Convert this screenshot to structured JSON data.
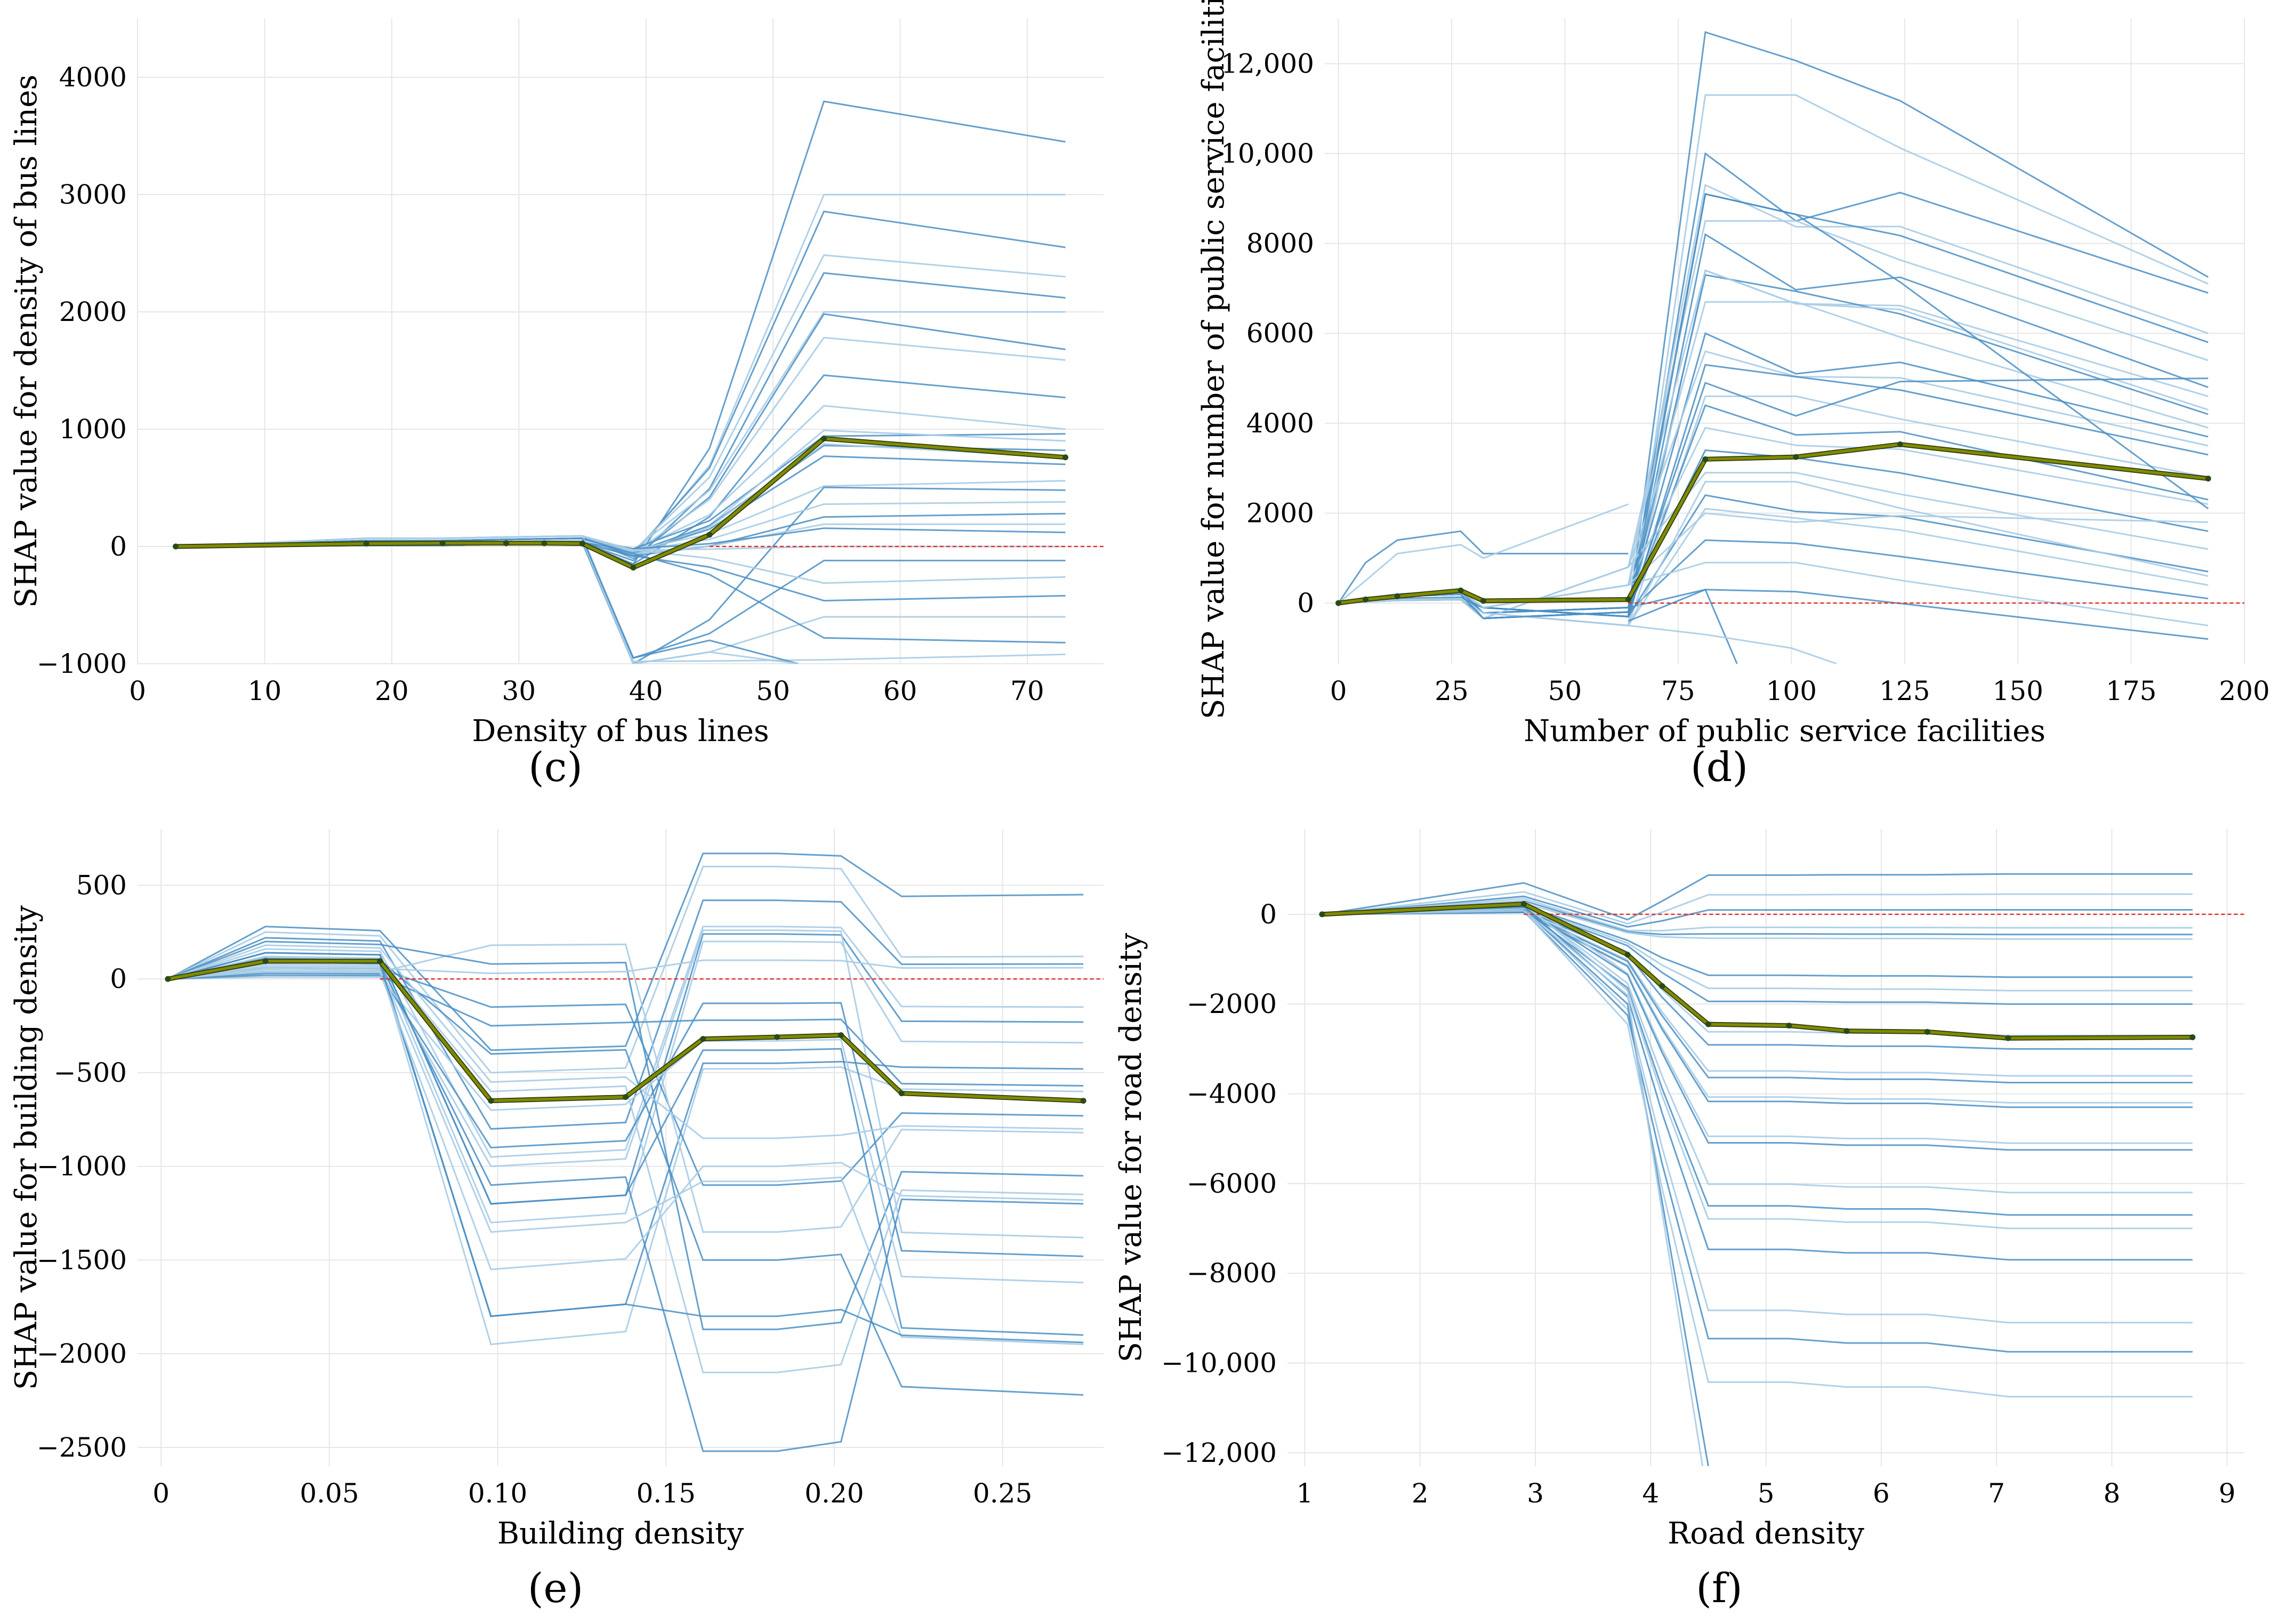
{
  "figure": {
    "layout": "2x2 grid of SHAP individual-dependence panels"
  },
  "colors": {
    "ice_dark": "#4a8fc4",
    "ice_light": "#a9cce6",
    "average": "#7f8a00",
    "average_marker": "#2b4a16",
    "zero_line": "#e0302a",
    "grid": "#e6e6e6"
  },
  "chart_data": [
    {
      "type": "line",
      "panel_label": "(c)",
      "xlabel": "Density of bus lines",
      "ylabel": "SHAP value for density of bus lines",
      "xlim": [
        0,
        76
      ],
      "ylim": [
        -1000,
        4500
      ],
      "xticks": [
        0,
        10,
        20,
        30,
        40,
        50,
        60,
        70
      ],
      "yticks": [
        -1000,
        0,
        1000,
        2000,
        3000,
        4000
      ],
      "xtick_labels": [
        "0",
        "10",
        "20",
        "30",
        "40",
        "50",
        "60",
        "70"
      ],
      "ytick_labels": [
        "−1000",
        "0",
        "1000",
        "2000",
        "3000",
        "4000"
      ],
      "x": [
        3,
        18,
        24,
        29,
        32,
        35,
        39,
        45,
        54,
        73
      ],
      "average_series": {
        "name": "average",
        "values": [
          0,
          25,
          28,
          28,
          28,
          25,
          -180,
          100,
          920,
          760
        ]
      },
      "ice_endpoints": [
        3450,
        3000,
        2550,
        2300,
        2120,
        2000,
        1680,
        1590,
        1270,
        1000,
        960,
        900,
        820,
        760,
        700,
        560,
        480,
        380,
        280,
        190,
        120,
        0,
        -120,
        -260,
        -420,
        -600,
        -820,
        -920
      ],
      "ice_peak_ratio": [
        1.1,
        1.0,
        1.12,
        1.08,
        1.1,
        1.0,
        1.18,
        1.12,
        1.15,
        1.2,
        0.98,
        1.1,
        1.05,
        1.15,
        1.1,
        0.92,
        1.05,
        0.95,
        0.9,
        1.0,
        1.3,
        1.0,
        1.0,
        1.2,
        1.1,
        1.0,
        0.95,
        1.05
      ],
      "ice_dip_values": [
        -150,
        -80,
        -60,
        -40,
        -120,
        -30,
        -100,
        -60,
        -150,
        -40,
        -20,
        -90,
        -50,
        -70,
        -60,
        -30,
        -1000,
        -40,
        -80,
        -60,
        -20,
        -30,
        -950,
        -30,
        -80,
        -1000,
        -60,
        -980
      ],
      "ice_cliffs": [
        {
          "x": [
            35,
            39,
            45,
            52
          ],
          "values": [
            70,
            -950,
            -800,
            -1000
          ]
        },
        {
          "x": [
            39,
            45,
            52
          ],
          "values": [
            -1000,
            -900,
            -1000
          ]
        }
      ],
      "zero_line_from_x": 45
    },
    {
      "type": "line",
      "panel_label": "(d)",
      "xlabel": "Number of public service facilities",
      "ylabel": "SHAP value for number of public service facilities",
      "xlim": [
        -3,
        200
      ],
      "ylim": [
        -1350,
        13000
      ],
      "xticks": [
        0,
        25,
        50,
        75,
        100,
        125,
        150,
        175,
        200
      ],
      "yticks": [
        0,
        2000,
        4000,
        6000,
        8000,
        10000,
        12000
      ],
      "xtick_labels": [
        "0",
        "25",
        "50",
        "75",
        "100",
        "125",
        "150",
        "175",
        "200"
      ],
      "ytick_labels": [
        "0",
        "2000",
        "4000",
        "6000",
        "8000",
        "10,000",
        "12,000"
      ],
      "x": [
        0,
        6,
        13,
        27,
        32,
        64,
        81,
        101,
        124,
        192
      ],
      "average_series": {
        "name": "average",
        "values": [
          0,
          80,
          150,
          280,
          50,
          80,
          3200,
          3250,
          3530,
          2770
        ]
      },
      "ice_endpoints": [
        7250,
        7100,
        6900,
        6000,
        5800,
        5400,
        4800,
        4600,
        4200,
        3900,
        3700,
        3500,
        3300,
        2800,
        2300,
        2200,
        1600,
        1200,
        700,
        400,
        100,
        -500,
        -800,
        4300,
        2100,
        600,
        5000,
        1800
      ],
      "ice_peaks": [
        12700,
        11300,
        10000,
        9300,
        9100,
        8500,
        8200,
        7400,
        7300,
        6700,
        6000,
        5600,
        5300,
        4600,
        4400,
        3900,
        3400,
        2900,
        2400,
        2100,
        1400,
        900,
        300,
        7400,
        9100,
        2700,
        4900,
        2000
      ],
      "ice_early": [
        {
          "x": [
            0,
            6,
            13,
            27,
            32,
            64
          ],
          "values": [
            0,
            900,
            1400,
            1600,
            1100,
            1100
          ]
        },
        {
          "x": [
            0,
            6,
            13,
            27,
            32,
            64
          ],
          "values": [
            0,
            500,
            1100,
            1300,
            1000,
            2200
          ]
        }
      ],
      "ice_cliffs": [
        {
          "x": [
            64,
            81,
            88
          ],
          "values": [
            -400,
            300,
            -1350
          ]
        },
        {
          "x": [
            64,
            81,
            100,
            110
          ],
          "values": [
            -500,
            -700,
            -1000,
            -1350
          ]
        }
      ],
      "zero_line_from_x": 64
    },
    {
      "type": "line",
      "panel_label": "(e)",
      "xlabel": "Building density",
      "ylabel": "SHAP value for building density",
      "xlim": [
        -0.007,
        0.28
      ],
      "ylim": [
        -2600,
        800
      ],
      "xticks": [
        0,
        0.05,
        0.1,
        0.15,
        0.2,
        0.25
      ],
      "yticks": [
        -2500,
        -2000,
        -1500,
        -1000,
        -500,
        0,
        500
      ],
      "xtick_labels": [
        "0",
        "0.05",
        "0.10",
        "0.15",
        "0.20",
        "0.25"
      ],
      "ytick_labels": [
        "−2500",
        "−2000",
        "−1500",
        "−1000",
        "−500",
        "0",
        "500"
      ],
      "x": [
        0.002,
        0.031,
        0.065,
        0.098,
        0.138,
        0.161,
        0.183,
        0.202,
        0.22,
        0.274
      ],
      "average_series": {
        "name": "average",
        "values": [
          0,
          95,
          95,
          -650,
          -630,
          -320,
          -310,
          -300,
          -610,
          -650
        ]
      },
      "ice_early": [
        280,
        250,
        220,
        160,
        140,
        120,
        100,
        80,
        60,
        40,
        200,
        120,
        90,
        50,
        30,
        10,
        140,
        70,
        110,
        60,
        20,
        180,
        90,
        40
      ],
      "ice_mid": [
        -380,
        -500,
        -800,
        -950,
        -1200,
        -1300,
        -1800,
        -1950,
        -150,
        180,
        80,
        -600,
        -1100,
        -1000,
        -900,
        -700,
        -1200,
        -1350,
        -400,
        30,
        -250,
        -550,
        -1800,
        -1550
      ],
      "ice_right": [
        670,
        600,
        420,
        280,
        240,
        200,
        -450,
        -480,
        -1100,
        -1350,
        -1870,
        -2100,
        -2520,
        260,
        -130,
        -330,
        -380,
        -1080,
        -1500,
        100,
        -220,
        -850,
        -1800,
        -1000
      ],
      "ice_end": [
        450,
        120,
        80,
        -150,
        -230,
        -340,
        -480,
        -600,
        -730,
        -820,
        -1050,
        -1150,
        -1200,
        -1380,
        -1480,
        -1620,
        -1900,
        -1950,
        -2220,
        60,
        -570,
        -800,
        -1940,
        -1180
      ],
      "zero_line_from_x": 0.065
    },
    {
      "type": "line",
      "panel_label": "(f)",
      "xlabel": "Road density",
      "ylabel": "SHAP value for road density",
      "xlim": [
        0.85,
        9.15
      ],
      "ylim": [
        -12300,
        1900
      ],
      "xticks": [
        1,
        2,
        3,
        4,
        5,
        6,
        7,
        8,
        9
      ],
      "yticks": [
        -12000,
        -10000,
        -8000,
        -6000,
        -4000,
        -2000,
        0
      ],
      "xtick_labels": [
        "1",
        "2",
        "3",
        "4",
        "5",
        "6",
        "7",
        "8",
        "9"
      ],
      "ytick_labels": [
        "−12,000",
        "−10,000",
        "−8000",
        "−6000",
        "−4000",
        "−2000",
        "0"
      ],
      "x": [
        1.15,
        2.9,
        3.8,
        4.1,
        4.5,
        5.2,
        5.7,
        6.4,
        7.1,
        8.7
      ],
      "average_series": {
        "name": "average",
        "values": [
          0,
          230,
          -900,
          -1600,
          -2450,
          -2480,
          -2600,
          -2620,
          -2760,
          -2740
        ]
      },
      "ice_early": [
        700,
        500,
        400,
        350,
        300,
        250,
        200,
        180,
        150,
        120,
        100,
        80,
        60,
        50,
        40,
        300,
        150,
        200,
        100,
        250,
        180,
        120,
        60,
        80
      ],
      "ice_end": [
        900,
        450,
        100,
        -300,
        -450,
        -550,
        -1400,
        -1700,
        -2000,
        -2700,
        -3000,
        -3600,
        -3750,
        -4200,
        -4300,
        -5100,
        -5250,
        -6200,
        -6700,
        -7000,
        -7700,
        -9100,
        -9750,
        -10750
      ],
      "ice_cliffs": [
        {
          "x": [
            2.9,
            3.8,
            4.5
          ],
          "values": [
            100,
            -2000,
            -12300
          ]
        },
        {
          "x": [
            2.9,
            3.8,
            4.45
          ],
          "values": [
            80,
            -1800,
            -12300
          ]
        }
      ],
      "zero_line_from_x": 2.9
    }
  ]
}
